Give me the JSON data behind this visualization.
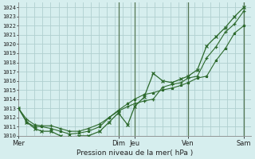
{
  "xlabel": "Pression niveau de la mer( hPa )",
  "ylim": [
    1010,
    1024.5
  ],
  "yticks": [
    1010,
    1011,
    1012,
    1013,
    1014,
    1015,
    1016,
    1017,
    1018,
    1019,
    1020,
    1021,
    1022,
    1023,
    1024
  ],
  "background_color": "#d6eeee",
  "grid_color": "#b0d0d0",
  "line_color": "#2d6a2d",
  "dark_vline_color": "#557755",
  "xlim": [
    0,
    1.0
  ],
  "x_tick_labels": [
    "Mer",
    "Dim",
    "Jeu",
    "Ven",
    "Sam"
  ],
  "x_tick_positions": [
    0.0,
    0.43,
    0.5,
    0.73,
    0.97
  ],
  "dark_vlines": [
    0.43,
    0.5,
    0.73,
    0.97
  ],
  "minor_vlines_count": 30,
  "series1_x": [
    0.0,
    0.035,
    0.07,
    0.1,
    0.14,
    0.18,
    0.22,
    0.26,
    0.3,
    0.35,
    0.39,
    0.43,
    0.47,
    0.5,
    0.54,
    0.58,
    0.62,
    0.66,
    0.7,
    0.73,
    0.77,
    0.81,
    0.85,
    0.89,
    0.93,
    0.97
  ],
  "series1_y": [
    1013.0,
    1011.8,
    1011.2,
    1011.1,
    1011.1,
    1010.8,
    1010.5,
    1010.5,
    1010.8,
    1011.3,
    1012.0,
    1012.7,
    1013.2,
    1013.5,
    1013.8,
    1014.0,
    1015.3,
    1015.6,
    1015.8,
    1016.3,
    1016.5,
    1018.5,
    1019.7,
    1021.3,
    1022.2,
    1023.6
  ],
  "series2_x": [
    0.0,
    0.035,
    0.07,
    0.1,
    0.14,
    0.18,
    0.22,
    0.26,
    0.3,
    0.35,
    0.39,
    0.43,
    0.47,
    0.5,
    0.54,
    0.58,
    0.62,
    0.66,
    0.7,
    0.73,
    0.77,
    0.81,
    0.85,
    0.89,
    0.93,
    0.97
  ],
  "series2_y": [
    1013.0,
    1011.5,
    1010.8,
    1010.5,
    1010.5,
    1010.0,
    1009.8,
    1010.0,
    1010.0,
    1010.5,
    1011.5,
    1012.5,
    1011.2,
    1013.2,
    1014.2,
    1016.8,
    1016.0,
    1015.8,
    1016.2,
    1016.5,
    1017.2,
    1019.8,
    1020.8,
    1021.8,
    1023.0,
    1024.0
  ],
  "series3_x": [
    0.0,
    0.035,
    0.07,
    0.1,
    0.14,
    0.18,
    0.22,
    0.26,
    0.3,
    0.35,
    0.39,
    0.43,
    0.47,
    0.5,
    0.54,
    0.58,
    0.62,
    0.66,
    0.7,
    0.73,
    0.77,
    0.81,
    0.85,
    0.89,
    0.93,
    0.97
  ],
  "series3_y": [
    1013.0,
    1011.5,
    1011.0,
    1011.0,
    1010.8,
    1010.5,
    1010.2,
    1010.3,
    1010.5,
    1011.0,
    1012.0,
    1012.8,
    1013.5,
    1014.0,
    1014.5,
    1014.7,
    1015.0,
    1015.2,
    1015.5,
    1015.8,
    1016.3,
    1016.5,
    1018.2,
    1019.5,
    1021.2,
    1022.0
  ]
}
